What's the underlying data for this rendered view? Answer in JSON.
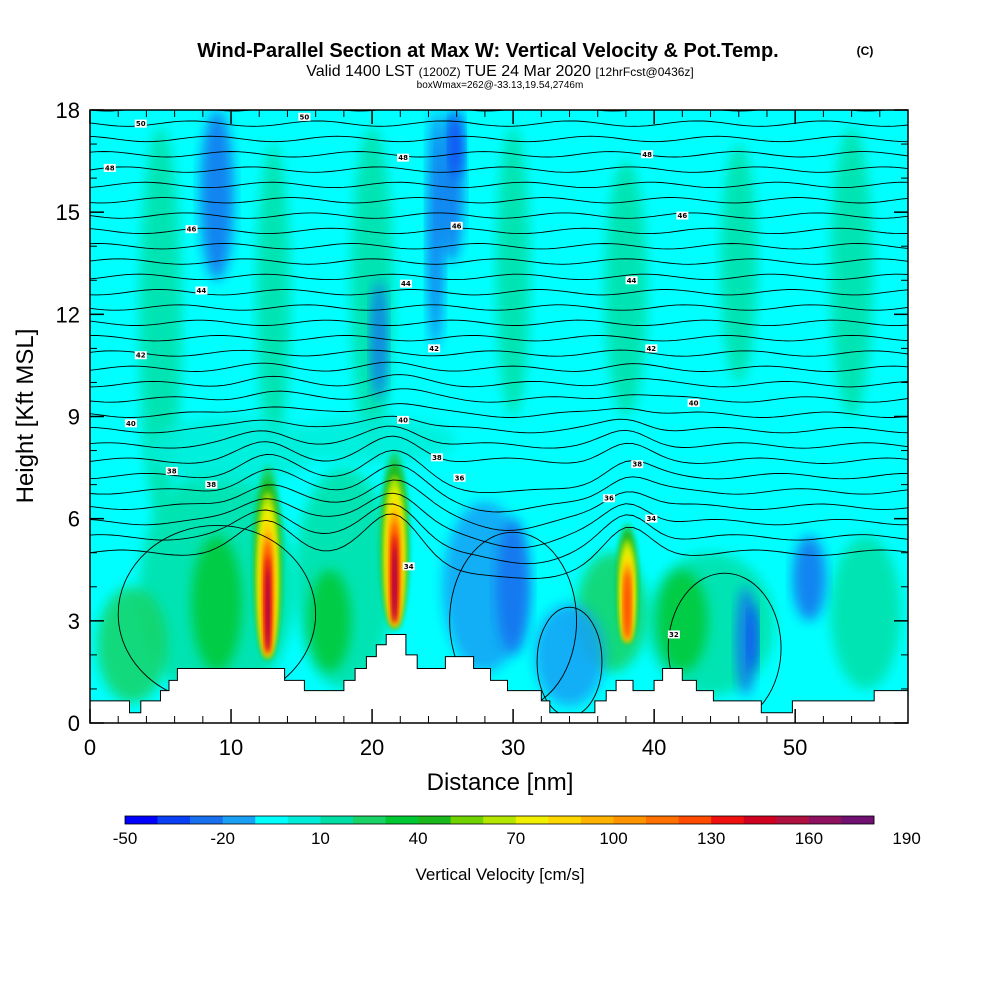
{
  "chart_data": {
    "type": "heatmap",
    "title": "Wind-Parallel Section at Max W: Vertical Velocity & Pot.Temp.",
    "title_mark": "(C)",
    "subtitle": {
      "prefix": "Valid 1400 LST",
      "utc": "(1200Z)",
      "date": "TUE 24 Mar 2020",
      "fcst": "[12hrFcst@0436z]"
    },
    "info_line": "boxWmax=262@-33.13,19.54,2746m",
    "xlabel": "Distance [nm]",
    "ylabel": "Height [Kft MSL]",
    "xlim": [
      0,
      58
    ],
    "ylim": [
      0,
      18
    ],
    "xticks": [
      "0",
      "10",
      "20",
      "30",
      "40",
      "50"
    ],
    "yticks": [
      "0",
      "3",
      "6",
      "9",
      "12",
      "15",
      "18"
    ],
    "background_color": "#00ffff",
    "terrain_color": "#ffffff",
    "terrain_profile": [
      [
        0,
        0.65
      ],
      [
        2.8,
        0.65
      ],
      [
        2.8,
        0.3
      ],
      [
        3.6,
        0.3
      ],
      [
        3.6,
        0.65
      ],
      [
        5.0,
        0.65
      ],
      [
        5.0,
        0.95
      ],
      [
        5.6,
        0.95
      ],
      [
        5.6,
        1.25
      ],
      [
        6.2,
        1.25
      ],
      [
        6.2,
        1.6
      ],
      [
        13.8,
        1.6
      ],
      [
        13.8,
        1.25
      ],
      [
        15.2,
        1.25
      ],
      [
        15.2,
        0.95
      ],
      [
        18.0,
        0.95
      ],
      [
        18.0,
        1.25
      ],
      [
        18.8,
        1.25
      ],
      [
        18.8,
        1.6
      ],
      [
        19.6,
        1.6
      ],
      [
        19.6,
        1.95
      ],
      [
        20.3,
        1.95
      ],
      [
        20.3,
        2.3
      ],
      [
        21.0,
        2.3
      ],
      [
        21.0,
        2.6
      ],
      [
        22.4,
        2.6
      ],
      [
        22.4,
        2.0
      ],
      [
        23.2,
        2.0
      ],
      [
        23.2,
        1.6
      ],
      [
        25.2,
        1.6
      ],
      [
        25.2,
        1.95
      ],
      [
        27.2,
        1.95
      ],
      [
        27.2,
        1.6
      ],
      [
        28.4,
        1.6
      ],
      [
        28.4,
        1.25
      ],
      [
        29.6,
        1.25
      ],
      [
        29.6,
        0.95
      ],
      [
        32.0,
        0.95
      ],
      [
        32.0,
        0.65
      ],
      [
        32.6,
        0.65
      ],
      [
        32.6,
        0.3
      ],
      [
        35.8,
        0.3
      ],
      [
        35.8,
        0.65
      ],
      [
        36.6,
        0.65
      ],
      [
        36.6,
        0.95
      ],
      [
        37.3,
        0.95
      ],
      [
        37.3,
        1.25
      ],
      [
        38.5,
        1.25
      ],
      [
        38.5,
        0.95
      ],
      [
        40.0,
        0.95
      ],
      [
        40.0,
        1.25
      ],
      [
        40.6,
        1.25
      ],
      [
        40.6,
        1.6
      ],
      [
        42.0,
        1.6
      ],
      [
        42.0,
        1.25
      ],
      [
        43.0,
        1.25
      ],
      [
        43.0,
        0.95
      ],
      [
        44.2,
        0.95
      ],
      [
        44.2,
        0.65
      ],
      [
        47.6,
        0.65
      ],
      [
        47.6,
        0.3
      ],
      [
        49.8,
        0.3
      ],
      [
        49.8,
        0.65
      ],
      [
        55.6,
        0.65
      ],
      [
        55.6,
        0.95
      ],
      [
        58,
        0.95
      ]
    ],
    "updraft_cores": [
      {
        "x": 12.6,
        "y_bottom": 1.8,
        "y_top": 7.6,
        "half_width": 1.0,
        "max_w": 175
      },
      {
        "x": 21.6,
        "y_bottom": 2.7,
        "y_top": 8.0,
        "half_width": 1.0,
        "max_w": 262
      },
      {
        "x": 38.1,
        "y_bottom": 2.3,
        "y_top": 5.9,
        "half_width": 0.75,
        "max_w": 120
      }
    ],
    "colorbar": {
      "label": "Vertical Velocity [cm/s]",
      "ticks": [
        "-50",
        "-20",
        "10",
        "40",
        "70",
        "100",
        "130",
        "160",
        "190"
      ],
      "colors": [
        "#0000ff",
        "#0a40f5",
        "#1970ee",
        "#19a0f5",
        "#00ffff",
        "#00eed9",
        "#00e0a6",
        "#19d366",
        "#00c833",
        "#1ab81a",
        "#70d200",
        "#b3e600",
        "#f0f000",
        "#ffd700",
        "#ffb300",
        "#ff9400",
        "#ff7000",
        "#ff4b00",
        "#f01010",
        "#d00020",
        "#b01040",
        "#901060",
        "#701070"
      ]
    },
    "contour_labels": [
      {
        "text": "50",
        "x": 3.6,
        "y": 17.6
      },
      {
        "text": "50",
        "x": 15.2,
        "y": 17.8
      },
      {
        "text": "48",
        "x": 1.4,
        "y": 16.3
      },
      {
        "text": "48",
        "x": 22.2,
        "y": 16.6
      },
      {
        "text": "48",
        "x": 39.5,
        "y": 16.7
      },
      {
        "text": "46",
        "x": 7.2,
        "y": 14.5
      },
      {
        "text": "46",
        "x": 26.0,
        "y": 14.6
      },
      {
        "text": "46",
        "x": 42.0,
        "y": 14.9
      },
      {
        "text": "44",
        "x": 7.9,
        "y": 12.7
      },
      {
        "text": "44",
        "x": 22.4,
        "y": 12.9
      },
      {
        "text": "44",
        "x": 38.4,
        "y": 13.0
      },
      {
        "text": "42",
        "x": 3.6,
        "y": 10.8
      },
      {
        "text": "42",
        "x": 24.4,
        "y": 11.0
      },
      {
        "text": "42",
        "x": 39.8,
        "y": 11.0
      },
      {
        "text": "40",
        "x": 2.9,
        "y": 8.8
      },
      {
        "text": "40",
        "x": 22.2,
        "y": 8.9
      },
      {
        "text": "40",
        "x": 42.8,
        "y": 9.4
      },
      {
        "text": "38",
        "x": 5.8,
        "y": 7.4
      },
      {
        "text": "38",
        "x": 8.6,
        "y": 7.0
      },
      {
        "text": "38",
        "x": 24.6,
        "y": 7.8
      },
      {
        "text": "38",
        "x": 38.8,
        "y": 7.6
      },
      {
        "text": "36",
        "x": 26.2,
        "y": 7.2
      },
      {
        "text": "36",
        "x": 36.8,
        "y": 6.6
      },
      {
        "text": "34",
        "x": 39.8,
        "y": 6.0
      },
      {
        "text": "34",
        "x": 22.6,
        "y": 4.6
      },
      {
        "text": "32",
        "x": 41.4,
        "y": 2.6
      }
    ]
  }
}
